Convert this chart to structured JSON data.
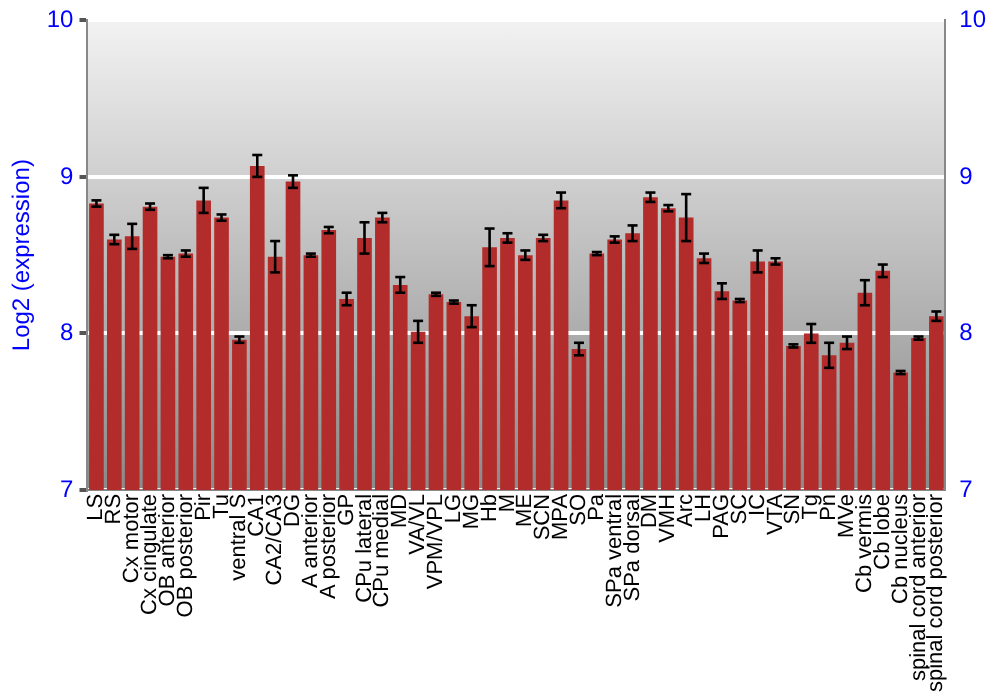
{
  "chart_data": {
    "type": "bar",
    "ylabel": "Log2 (expression)",
    "categories": [
      "LS",
      "RS",
      "Cx motor",
      "Cx cingulate",
      "OB anterior",
      "OB posterior",
      "Pir",
      "Tu",
      "ventral S",
      "CA1",
      "CA2/CA3",
      "DG",
      "A anterior",
      "A posterior",
      "GP",
      "CPu lateral",
      "CPu medial",
      "MD",
      "VA/VL",
      "VPM/VPL",
      "LG",
      "MG",
      "Hb",
      "M",
      "ME",
      "SCN",
      "MPA",
      "SO",
      "Pa",
      "SPa ventral",
      "SPa dorsal",
      "DM",
      "VMH",
      "Arc",
      "LH",
      "PAG",
      "SC",
      "IC",
      "VTA",
      "SN",
      "Tg",
      "Pn",
      "MVe",
      "Cb vermis",
      "Cb lobe",
      "Cb nucleus",
      "spinal cord anterior",
      "spinal cord posterior"
    ],
    "values": [
      8.83,
      8.6,
      8.62,
      8.81,
      8.49,
      8.51,
      8.85,
      8.74,
      7.96,
      9.07,
      8.49,
      8.97,
      8.5,
      8.66,
      8.22,
      8.61,
      8.74,
      8.31,
      8.01,
      8.25,
      8.2,
      8.11,
      8.55,
      8.61,
      8.5,
      8.61,
      8.85,
      7.9,
      8.51,
      8.6,
      8.64,
      8.87,
      8.8,
      8.74,
      8.48,
      8.27,
      8.21,
      8.46,
      8.46,
      7.92,
      8.0,
      7.86,
      7.94,
      8.26,
      8.4,
      7.75,
      7.97,
      8.11
    ],
    "errors": [
      0.02,
      0.03,
      0.08,
      0.02,
      0.01,
      0.02,
      0.08,
      0.02,
      0.02,
      0.07,
      0.1,
      0.04,
      0.01,
      0.02,
      0.04,
      0.1,
      0.03,
      0.05,
      0.07,
      0.01,
      0.01,
      0.07,
      0.12,
      0.03,
      0.03,
      0.02,
      0.05,
      0.04,
      0.01,
      0.02,
      0.05,
      0.03,
      0.02,
      0.15,
      0.03,
      0.05,
      0.01,
      0.07,
      0.02,
      0.01,
      0.06,
      0.08,
      0.04,
      0.08,
      0.04,
      0.01,
      0.01,
      0.03
    ],
    "color": "#b22c2c",
    "ylim": [
      7,
      10
    ],
    "yticks": [
      7,
      8,
      9,
      10
    ],
    "y2lim": [
      7,
      10
    ],
    "y2ticks": [
      7,
      8,
      9,
      10
    ],
    "grid": "y"
  }
}
